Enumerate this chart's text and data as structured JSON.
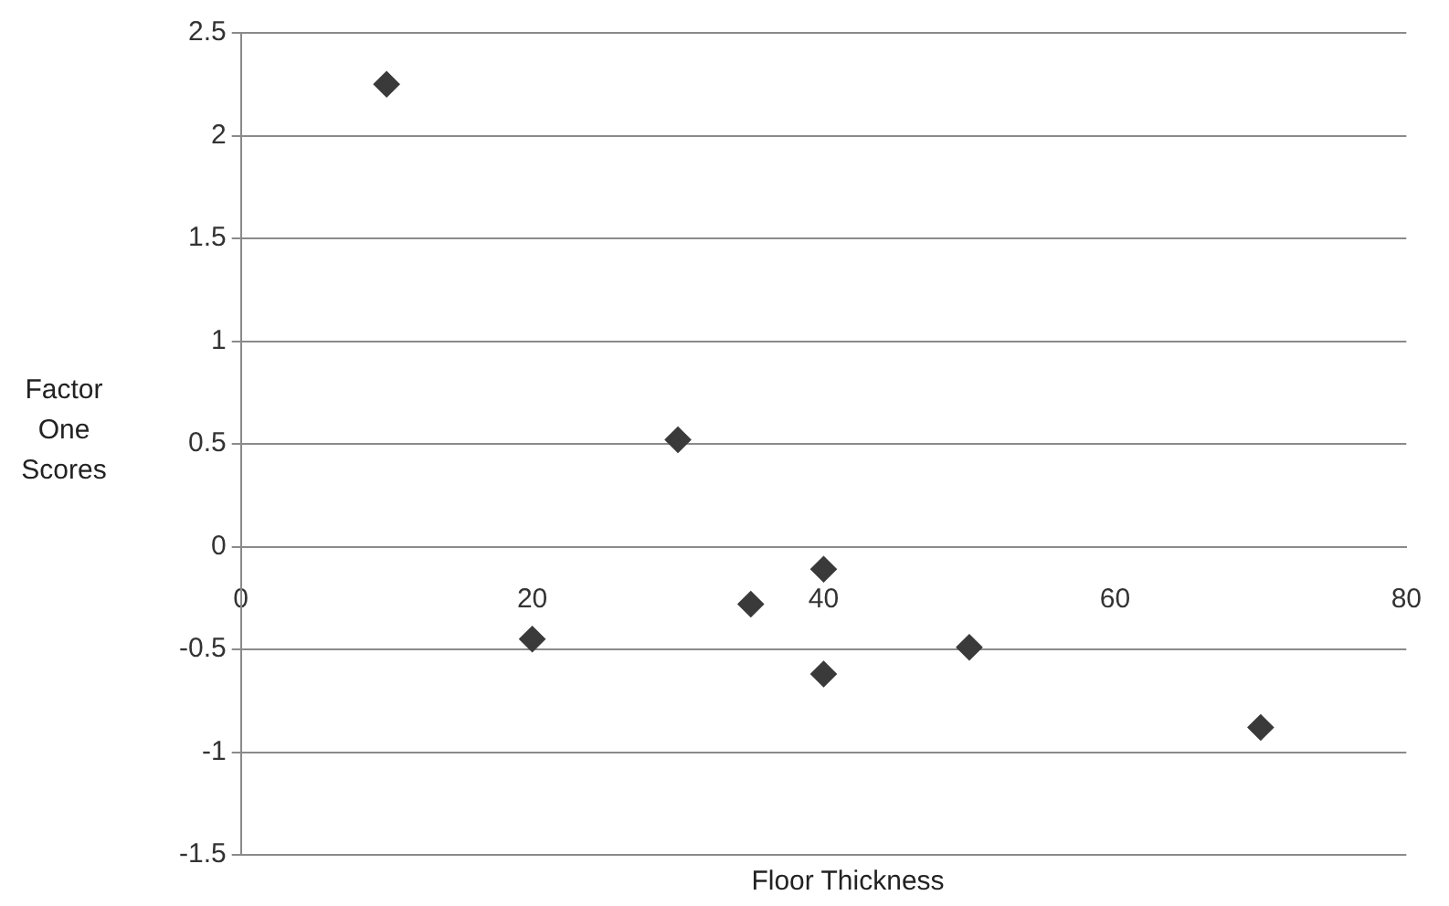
{
  "chart_data": {
    "type": "scatter",
    "xlabel": "Floor Thickness",
    "ylabel": "Factor One Scores",
    "xlim": [
      0,
      80
    ],
    "xticks": [
      0,
      20,
      40,
      60,
      80
    ],
    "ylim": [
      -1.5,
      2.5
    ],
    "yticks": [
      -1.5,
      -1,
      -0.5,
      0,
      0.5,
      1,
      1.5,
      2,
      2.5
    ],
    "grid": "y",
    "marker": "diamond",
    "legend": false,
    "series": [
      {
        "color": "#3a3a3a",
        "x": [
          10,
          20,
          30,
          35,
          40,
          40,
          50,
          70
        ],
        "values": [
          2.25,
          -0.45,
          0.52,
          -0.28,
          -0.11,
          -0.62,
          -0.49,
          -0.88
        ]
      }
    ]
  }
}
